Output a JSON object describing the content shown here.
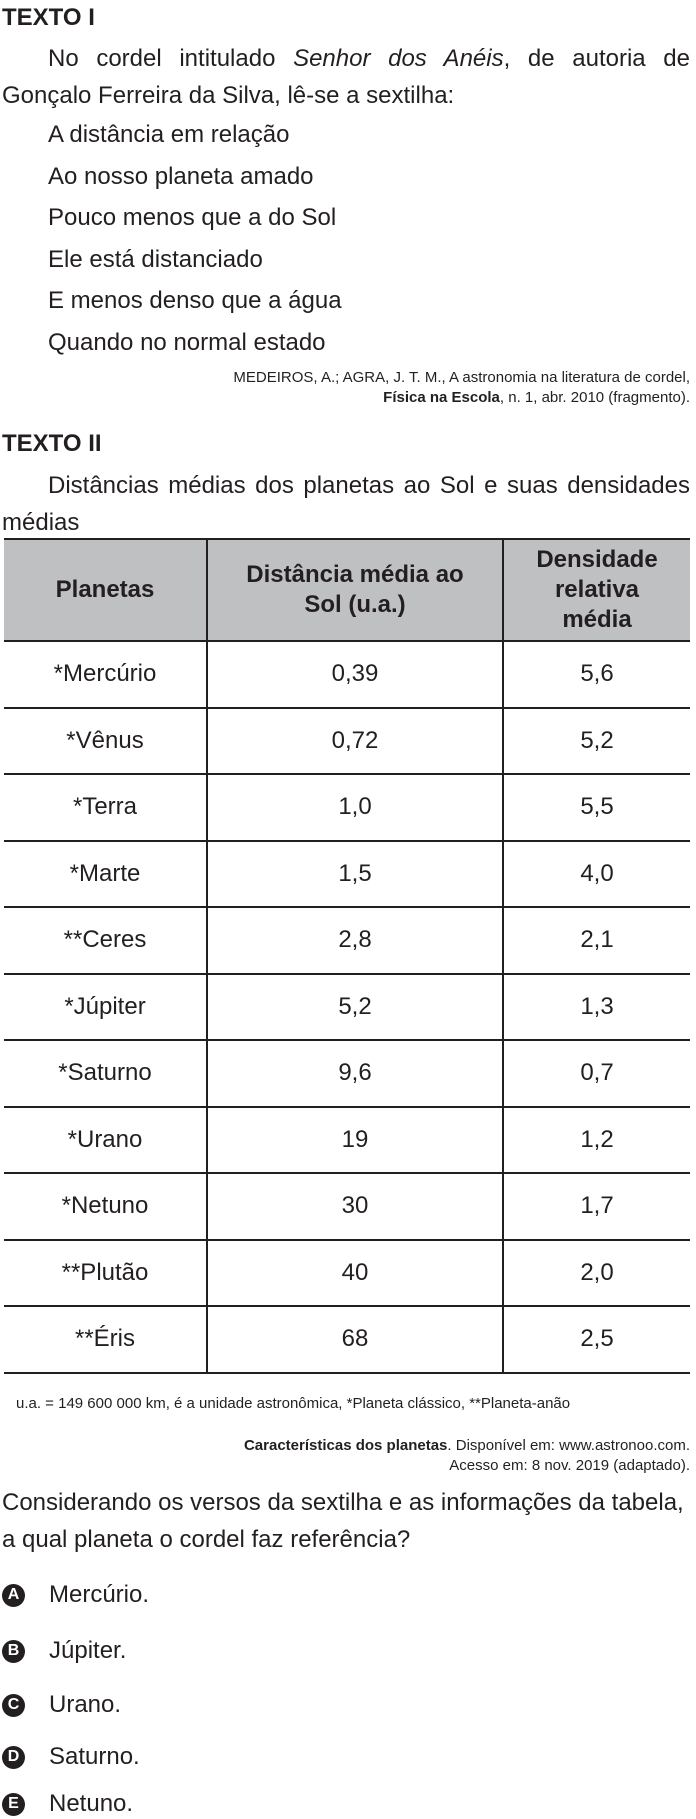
{
  "texto1": {
    "heading": "TEXTO I",
    "intro": [
      "No cordel intitulado ",
      "Senhor dos Anéis",
      ", de autoria de Gonçalo Ferreira da Silva, lê-se a sextilha:"
    ],
    "verses": [
      "A distância em relação",
      "Ao nosso planeta amado",
      "Pouco menos que a do Sol",
      "Ele está distanciado",
      "E menos denso que a água",
      "Quando no normal estado"
    ],
    "citation": [
      "MEDEIROS, A.; AGRA, J. T. M., A astronomia na literatura de cordel,",
      "Física na Escola",
      ", n. 1, abr. 2010 (fragmento)."
    ]
  },
  "texto2": {
    "heading": "TEXTO II",
    "caption": "Distâncias médias dos planetas ao Sol e suas densidades médias",
    "table": {
      "header": [
        "Planetas",
        "Distância média ao Sol (u.a.)",
        "Densidade relativa média"
      ],
      "rows": [
        [
          "*Mercúrio",
          "0,39",
          "5,6"
        ],
        [
          "*Vênus",
          "0,72",
          "5,2"
        ],
        [
          "*Terra",
          "1,0",
          "5,5"
        ],
        [
          "*Marte",
          "1,5",
          "4,0"
        ],
        [
          "**Ceres",
          "2,8",
          "2,1"
        ],
        [
          "*Júpiter",
          "5,2",
          "1,3"
        ],
        [
          "*Saturno",
          "9,6",
          "0,7"
        ],
        [
          "*Urano",
          "19",
          "1,2"
        ],
        [
          "*Netuno",
          "30",
          "1,7"
        ],
        [
          "**Plutão",
          "40",
          "2,0"
        ],
        [
          "**Éris",
          "68",
          "2,5"
        ]
      ]
    },
    "note": "u.a. = 149 600 000 km, é a unidade astronômica, *Planeta clássico, **Planeta-anão",
    "source": [
      "Características dos planetas",
      ". Disponível em: www.astronoo.com.",
      "Acesso em: 8 nov. 2019 (adaptado)."
    ]
  },
  "question": "Considerando os versos da sextilha e as informações da tabela, a qual planeta o cordel faz referência?",
  "options": [
    {
      "letter": "A",
      "text": "Mercúrio."
    },
    {
      "letter": "B",
      "text": "Júpiter."
    },
    {
      "letter": "C",
      "text": "Urano."
    },
    {
      "letter": "D",
      "text": "Saturno."
    },
    {
      "letter": "E",
      "text": "Netuno."
    }
  ]
}
